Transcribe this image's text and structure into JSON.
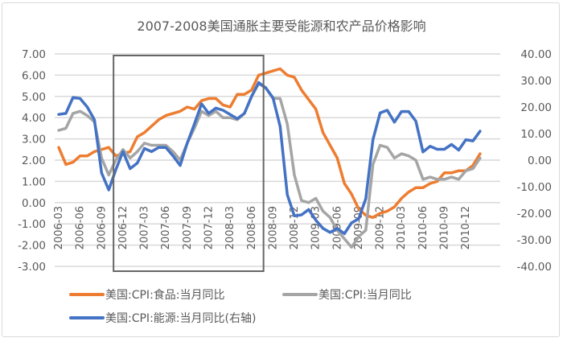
{
  "chart_data": {
    "type": "line",
    "title": "2007-2008美国通胀主要受能源和农产品价格影响",
    "x_start": "2006-03",
    "x_tick_labels": [
      "2006-03",
      "2006-06",
      "2006-09",
      "2006-12",
      "2007-03",
      "2007-06",
      "2007-09",
      "2007-12",
      "2008-03",
      "2008-06",
      "2008-09",
      "2008-12",
      "2009-03",
      "2009-06",
      "2009-09",
      "2009-12",
      "2010-03",
      "2010-06",
      "2010-09",
      "2010-12"
    ],
    "y_left": {
      "range": [
        -3,
        7
      ],
      "ticks": [
        "7.00",
        "6.00",
        "5.00",
        "4.00",
        "3.00",
        "2.00",
        "1.00",
        "0.00",
        "-1.00",
        "-2.00",
        "-3.00"
      ]
    },
    "y_right": {
      "range": [
        -40,
        40
      ],
      "ticks": [
        "40.00",
        "30.00",
        "20.00",
        "10.00",
        "0.00",
        "-10.00",
        "-20.00",
        "-30.00",
        "-40.00"
      ]
    },
    "grid": true,
    "legend_placement": "bottom",
    "highlight_box": {
      "x_from": "2006-10",
      "x_to": "2008-07",
      "y_from": 0,
      "y_to": 7
    },
    "series": [
      {
        "name": "美国:CPI:食品:当月同比",
        "axis": "left",
        "color": "#ED7D31",
        "values": [
          2.6,
          1.8,
          1.9,
          2.2,
          2.2,
          2.4,
          2.5,
          2.6,
          2.2,
          2.3,
          2.4,
          3.1,
          3.3,
          3.6,
          3.9,
          4.1,
          4.2,
          4.3,
          4.5,
          4.4,
          4.8,
          4.9,
          4.9,
          4.6,
          4.5,
          5.1,
          5.1,
          5.3,
          6.0,
          6.1,
          6.2,
          6.3,
          6.0,
          5.9,
          5.3,
          4.85,
          4.4,
          3.3,
          2.7,
          2.1,
          0.9,
          0.4,
          -0.3,
          -0.6,
          -0.7,
          -0.5,
          -0.4,
          -0.2,
          0.2,
          0.5,
          0.7,
          0.7,
          0.9,
          1.0,
          1.4,
          1.4,
          1.5,
          1.5,
          1.75,
          2.3
        ]
      },
      {
        "name": "美国:CPI:当月同比",
        "axis": "left",
        "color": "#A5A5A5",
        "values": [
          3.4,
          3.5,
          4.2,
          4.3,
          4.1,
          3.8,
          2.1,
          1.3,
          2.0,
          2.5,
          2.1,
          2.4,
          2.8,
          2.7,
          2.7,
          2.7,
          2.4,
          2.0,
          2.8,
          3.5,
          4.3,
          4.1,
          4.3,
          4.0,
          4.0,
          3.9,
          4.2,
          5.0,
          5.6,
          5.4,
          4.9,
          4.9,
          3.7,
          1.3,
          0.1,
          0.0,
          0.2,
          -0.4,
          -0.7,
          -1.3,
          -1.7,
          -2.1,
          -1.6,
          -1.3,
          1.8,
          2.7,
          2.6,
          2.1,
          2.3,
          2.2,
          2.0,
          1.1,
          1.2,
          1.1,
          1.1,
          1.2,
          1.1,
          1.5,
          1.6,
          2.1
        ]
      },
      {
        "name": "美国:CPI:能源:当月同比(右轴)",
        "axis": "right",
        "color": "#4472C4",
        "values": [
          17.2,
          17.6,
          23.6,
          23.2,
          20.0,
          15.2,
          -4.8,
          -11.2,
          -3.6,
          3.2,
          -3.2,
          -1.1,
          4.4,
          3.2,
          4.8,
          4.8,
          1.6,
          -2.0,
          6.4,
          13.6,
          21.2,
          17.6,
          19.6,
          18.8,
          17.2,
          15.6,
          17.6,
          24.0,
          29.2,
          27.2,
          23.5,
          12.7,
          -13.0,
          -21.0,
          -20.6,
          -18.6,
          -22.6,
          -25.7,
          -27.2,
          -25.7,
          -27.7,
          -23.6,
          -22.1,
          -14.5,
          7.7,
          17.8,
          18.8,
          14.3,
          18.3,
          18.3,
          14.7,
          3.1,
          5.2,
          4.1,
          4.1,
          5.9,
          3.8,
          7.7,
          7.2,
          10.9
        ]
      }
    ]
  }
}
